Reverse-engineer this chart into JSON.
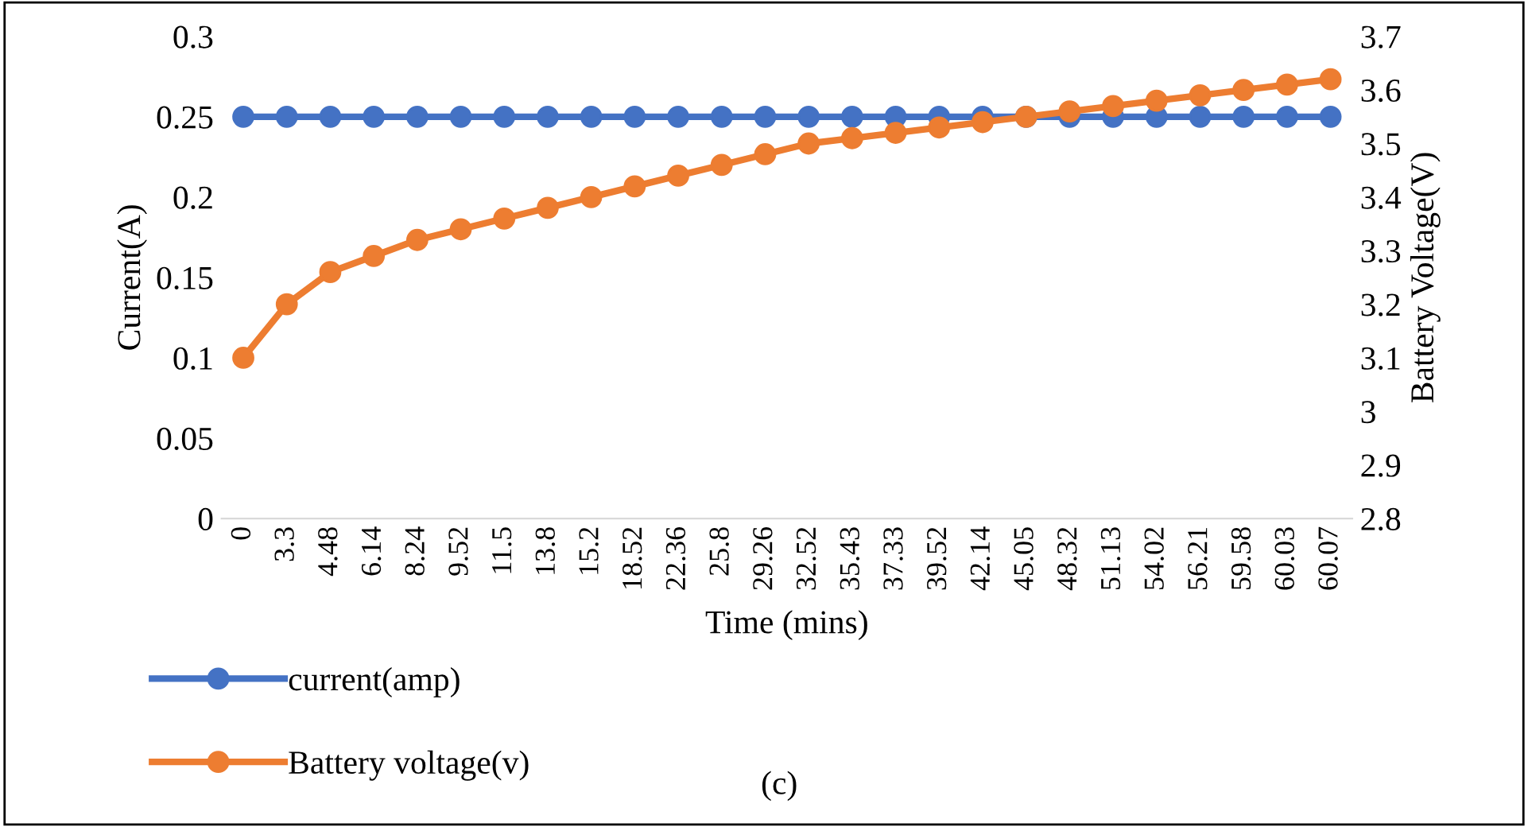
{
  "chart_data": {
    "type": "line",
    "xlabel": "Time (mins)",
    "ylabel": "Current(A)",
    "y2label": "Battery Voltage(V)",
    "categories": [
      "0",
      "3.3",
      "4.48",
      "6.14",
      "8.24",
      "9.52",
      "11.5",
      "13.8",
      "15.2",
      "18.52",
      "22.36",
      "25.8",
      "29.26",
      "32.52",
      "35.43",
      "37.33",
      "39.52",
      "42.14",
      "45.05",
      "48.32",
      "51.13",
      "54.02",
      "56.21",
      "59.58",
      "60.03",
      "60.07"
    ],
    "series": [
      {
        "name": "current(amp)",
        "color": "#4472c4",
        "values": [
          0.25,
          0.25,
          0.25,
          0.25,
          0.25,
          0.25,
          0.25,
          0.25,
          0.25,
          0.25,
          0.25,
          0.25,
          0.25,
          0.25,
          0.25,
          0.25,
          0.25,
          0.25,
          0.25,
          0.25,
          0.25,
          0.25,
          0.25,
          0.25,
          0.25,
          0.25
        ]
      },
      {
        "name": "Battery voltage(v)",
        "color": "#ed7d31",
        "axis": "y2",
        "values": [
          3.1,
          3.2,
          3.26,
          3.29,
          3.32,
          3.34,
          3.36,
          3.38,
          3.4,
          3.42,
          3.44,
          3.46,
          3.48,
          3.5,
          3.51,
          3.52,
          3.53,
          3.54,
          3.55,
          3.56,
          3.57,
          3.58,
          3.59,
          3.6,
          3.61,
          3.62
        ]
      }
    ],
    "ylim": [
      0,
      0.3
    ],
    "yticks": [
      0,
      0.05,
      0.1,
      0.15,
      0.2,
      0.25,
      0.3
    ],
    "y2lim": [
      2.8,
      3.7
    ],
    "y2ticks": [
      2.8,
      2.9,
      3,
      3.1,
      3.2,
      3.3,
      3.4,
      3.5,
      3.6,
      3.7
    ],
    "annotations": [
      "(c)"
    ],
    "legend": "bottom left",
    "marker": "circle",
    "line_style": "solid",
    "grid": false
  }
}
